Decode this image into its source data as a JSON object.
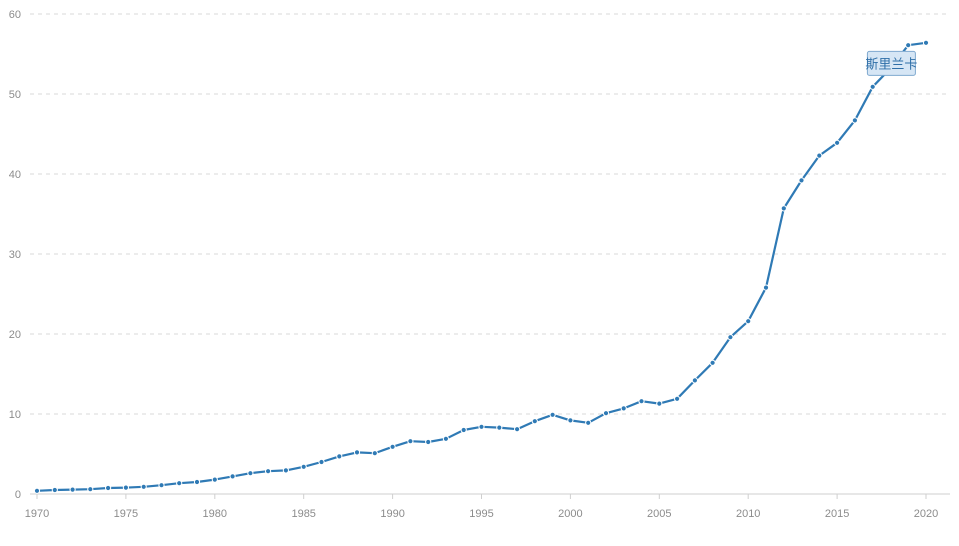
{
  "chart_data": {
    "type": "line",
    "title": "",
    "xlabel": "",
    "ylabel": "",
    "xlim": [
      1970,
      2020
    ],
    "ylim": [
      0,
      60
    ],
    "x_ticks": [
      1970,
      1975,
      1980,
      1985,
      1990,
      1995,
      2000,
      2005,
      2010,
      2015,
      2020
    ],
    "y_ticks": [
      0,
      10,
      20,
      30,
      40,
      50,
      60
    ],
    "grid": true,
    "legend": "none",
    "series_label": "斯里兰卡",
    "color": "#2f7ab5",
    "series": [
      {
        "x": [
          1970,
          1971,
          1972,
          1973,
          1974,
          1975,
          1976,
          1977,
          1978,
          1979,
          1980,
          1981,
          1982,
          1983,
          1984,
          1985,
          1986,
          1987,
          1988,
          1989,
          1990,
          1991,
          1992,
          1993,
          1994,
          1995,
          1996,
          1997,
          1998,
          1999,
          2000,
          2001,
          2002,
          2003,
          2004,
          2005,
          2006,
          2007,
          2008,
          2009,
          2010,
          2011,
          2012,
          2013,
          2014,
          2015,
          2016,
          2017,
          2018,
          2019,
          2020
        ],
        "values": [
          0.4,
          0.5,
          0.55,
          0.6,
          0.75,
          0.8,
          0.9,
          1.1,
          1.35,
          1.5,
          1.8,
          2.2,
          2.6,
          2.85,
          2.95,
          3.4,
          4.0,
          4.7,
          5.2,
          5.1,
          5.9,
          6.6,
          6.5,
          6.9,
          8.0,
          8.4,
          8.3,
          8.1,
          9.1,
          9.9,
          9.2,
          8.9,
          10.1,
          10.7,
          11.6,
          11.3,
          11.9,
          14.2,
          16.4,
          19.6,
          21.6,
          25.8,
          35.7,
          39.2,
          42.3,
          43.9,
          46.7,
          50.9,
          53.2,
          56.1,
          56.4
        ]
      }
    ]
  }
}
